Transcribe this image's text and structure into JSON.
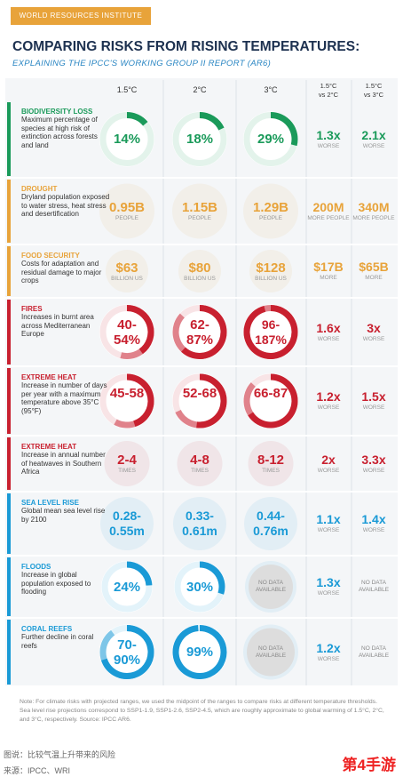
{
  "header": {
    "brand": "WORLD RESOURCES INSTITUTE",
    "title": "COMPARING RISKS FROM RISING TEMPERATURES:",
    "subtitle": "EXPLAINING THE IPCC'S WORKING GROUP II REPORT (AR6)"
  },
  "columns": [
    {
      "top": "1.5°C"
    },
    {
      "top": "2°C"
    },
    {
      "top": "3°C"
    },
    {
      "top": "1.5°C",
      "bottom": "vs 2°C"
    },
    {
      "top": "1.5°C",
      "bottom": "vs 3°C"
    }
  ],
  "rows": [
    {
      "title": "BIODIVERSITY LOSS",
      "desc": "Maximum percentage of species at high risk of extinction across forests and land",
      "color": "#1a9a5a",
      "cells": [
        {
          "label": "14%",
          "ring": [
            14
          ]
        },
        {
          "label": "18%",
          "ring": [
            18
          ]
        },
        {
          "label": "29%",
          "ring": [
            29
          ]
        }
      ],
      "comparisons": [
        {
          "label": "1.3x",
          "sub": "WORSE"
        },
        {
          "label": "2.1x",
          "sub": "WORSE"
        }
      ]
    },
    {
      "title": "DROUGHT",
      "desc": "Dryland population exposed to water stress, heat stress and desertification",
      "color": "#e8a33a",
      "cells": [
        {
          "label": "0.95B",
          "sub": "PEOPLE"
        },
        {
          "label": "1.15B",
          "sub": "PEOPLE"
        },
        {
          "label": "1.29B",
          "sub": "PEOPLE"
        }
      ],
      "comparisons": [
        {
          "label": "200M",
          "sub": "MORE PEOPLE"
        },
        {
          "label": "340M",
          "sub": "MORE PEOPLE"
        }
      ]
    },
    {
      "title": "FOOD SECURITY",
      "desc": "Costs for adaptation and residual damage to major crops",
      "color": "#e8a33a",
      "cells": [
        {
          "label": "$63",
          "sub": "BILLION US"
        },
        {
          "label": "$80",
          "sub": "BILLION US"
        },
        {
          "label": "$128",
          "sub": "BILLION US"
        }
      ],
      "comparisons": [
        {
          "label": "$17B",
          "sub": "MORE"
        },
        {
          "label": "$65B",
          "sub": "MORE"
        }
      ]
    },
    {
      "title": "FIRES",
      "desc": "Increases in burnt area across Mediterranean Europe",
      "color": "#c8202f",
      "cells": [
        {
          "label": "40-54%",
          "ring": [
            40,
            54
          ]
        },
        {
          "label": "62-87%",
          "ring": [
            62,
            87
          ]
        },
        {
          "label": "96-187%",
          "ring": [
            96,
            187
          ]
        }
      ],
      "comparisons": [
        {
          "label": "1.6x",
          "sub": "WORSE"
        },
        {
          "label": "3x",
          "sub": "WORSE"
        }
      ]
    },
    {
      "title": "EXTREME HEAT",
      "desc": "Increase in number of days per year with a maximum temperature above 35°C (95°F)",
      "color": "#c8202f",
      "cells": [
        {
          "label": "45-58",
          "ring": [
            45,
            58
          ]
        },
        {
          "label": "52-68",
          "ring": [
            52,
            68
          ]
        },
        {
          "label": "66-87",
          "ring": [
            66,
            87
          ]
        }
      ],
      "comparisons": [
        {
          "label": "1.2x",
          "sub": "WORSE"
        },
        {
          "label": "1.5x",
          "sub": "WORSE"
        }
      ]
    },
    {
      "title": "EXTREME HEAT",
      "desc": "Increase in annual number of heatwaves in Southern Africa",
      "color": "#c8202f",
      "cells": [
        {
          "label": "2-4",
          "sub": "TIMES"
        },
        {
          "label": "4-8",
          "sub": "TIMES"
        },
        {
          "label": "8-12",
          "sub": "TIMES"
        }
      ],
      "comparisons": [
        {
          "label": "2x",
          "sub": "WORSE"
        },
        {
          "label": "3.3x",
          "sub": "WORSE"
        }
      ]
    },
    {
      "title": "SEA LEVEL RISE",
      "desc": "Global mean sea level rise by 2100",
      "color": "#1a9ad6",
      "cells": [
        {
          "label": "0.28-0.55m"
        },
        {
          "label": "0.33-0.61m"
        },
        {
          "label": "0.44-0.76m"
        }
      ],
      "comparisons": [
        {
          "label": "1.1x",
          "sub": "WORSE"
        },
        {
          "label": "1.4x",
          "sub": "WORSE"
        }
      ]
    },
    {
      "title": "FLOODS",
      "desc": "Increase in global population exposed to flooding",
      "color": "#1a9ad6",
      "cells": [
        {
          "label": "24%",
          "ring": [
            24
          ]
        },
        {
          "label": "30%",
          "ring": [
            30
          ]
        },
        {
          "label": "NO DATA AVAILABLE"
        }
      ],
      "comparisons": [
        {
          "label": "1.3x",
          "sub": "WORSE"
        },
        {
          "label": "NO DATA AVAILABLE"
        }
      ]
    },
    {
      "title": "CORAL REEFS",
      "desc": "Further decline in coral reefs",
      "color": "#1a9ad6",
      "cells": [
        {
          "label": "70-90%",
          "ring": [
            70,
            90
          ]
        },
        {
          "label": "99%",
          "ring": [
            99
          ]
        },
        {
          "label": "NO DATA AVAILABLE"
        }
      ],
      "comparisons": [
        {
          "label": "1.2x",
          "sub": "WORSE"
        },
        {
          "label": "NO DATA AVAILABLE"
        }
      ]
    }
  ],
  "note": "Note: For climate risks with projected ranges, we used the midpoint of the ranges to compare risks at different temperature thresholds. Sea level rise projections correspond to SSP1-1.9, SSP1-2.6, SSP2-4.5, which are roughly approximate to global warming of 1.5°C, 2°C, and 3°C, respectively. Source: IPCC AR6.",
  "caption": {
    "line1": "图说：比较气温上升带来的风险",
    "line2": "来源：IPCC、WRI",
    "watermark": "第4手游"
  }
}
